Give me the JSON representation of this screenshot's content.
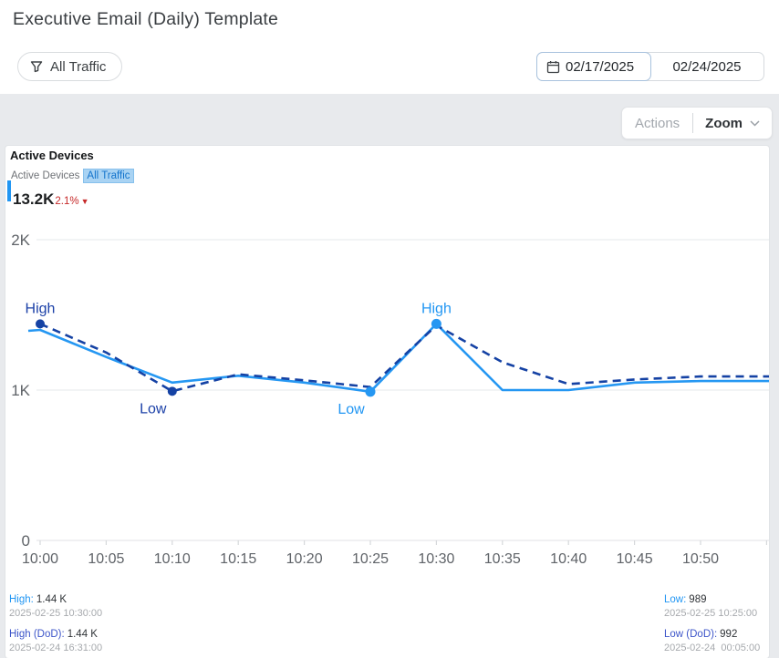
{
  "page": {
    "title": "Executive Email (Daily) Template"
  },
  "toolbar": {
    "filter_label": "All Traffic",
    "date_start": "02/17/2025",
    "date_end": "02/24/2025"
  },
  "panel": {
    "actions_label": "Actions",
    "zoom_label": "Zoom"
  },
  "card": {
    "title": "Active Devices",
    "legend_series": "Active Devices",
    "legend_segment": "All Traffic",
    "kpi_value": "13.2K",
    "kpi_change": "2.1%",
    "kpi_direction": "down"
  },
  "colors": {
    "series_current": "#2597f2",
    "series_dod": "#1542a4",
    "negative_red": "#c62a2a",
    "chip_bg": "#a9d3f3",
    "chip_text": "#1273cc"
  },
  "chart_data": {
    "type": "line",
    "title": "Active Devices",
    "ylabel": "",
    "xlabel": "",
    "ylim": [
      0,
      2000
    ],
    "grid": true,
    "x_labels": [
      "10:00",
      "10:05",
      "10:10",
      "10:15",
      "10:20",
      "10:25",
      "10:30",
      "10:35",
      "10:40",
      "10:45",
      "10:50"
    ],
    "x_minutes": [
      0,
      5,
      10,
      15,
      20,
      25,
      30,
      35,
      40,
      45,
      50,
      55
    ],
    "y_ticks": [
      {
        "label": "0",
        "value": 0
      },
      {
        "label": "1K",
        "value": 1000
      },
      {
        "label": "2K",
        "value": 2000
      }
    ],
    "series": [
      {
        "name": "All Traffic",
        "style": "solid",
        "color": "#2597f2",
        "values": [
          1400,
          1220,
          1050,
          1095,
          1050,
          989,
          1440,
          1000,
          1000,
          1050,
          1060,
          1060
        ],
        "extend_left": true
      },
      {
        "name": "All Traffic (DoD)",
        "style": "dashed",
        "color": "#1542a4",
        "values": [
          1440,
          1250,
          992,
          1105,
          1065,
          1020,
          1430,
          1185,
          1040,
          1070,
          1090,
          1090
        ],
        "extend_left": false
      }
    ],
    "annotations": [
      {
        "text": "High",
        "series": "All Traffic (DoD)",
        "minute": 0,
        "value": 1440,
        "placement": "above"
      },
      {
        "text": "Low",
        "series": "All Traffic (DoD)",
        "minute": 10,
        "value": 992,
        "placement": "below"
      },
      {
        "text": "Low",
        "series": "All Traffic",
        "minute": 25,
        "value": 989,
        "placement": "below"
      },
      {
        "text": "High",
        "series": "All Traffic",
        "minute": 30,
        "value": 1440,
        "placement": "above"
      }
    ],
    "legend_position": "top-left"
  },
  "stats": {
    "high": {
      "label": "High:",
      "value": "1.44 K",
      "timestamp": "2025-02-25 10:30:00"
    },
    "high_dod": {
      "label": "High (DoD):",
      "value": "1.44 K",
      "timestamp": "2025-02-24 16:31:00"
    },
    "low": {
      "label": "Low:",
      "value": "989",
      "timestamp": "2025-02-25 10:25:00"
    },
    "low_dod": {
      "label": "Low (DoD):",
      "value": "992",
      "timestamp": "2025-02-24  00:05:00"
    }
  }
}
